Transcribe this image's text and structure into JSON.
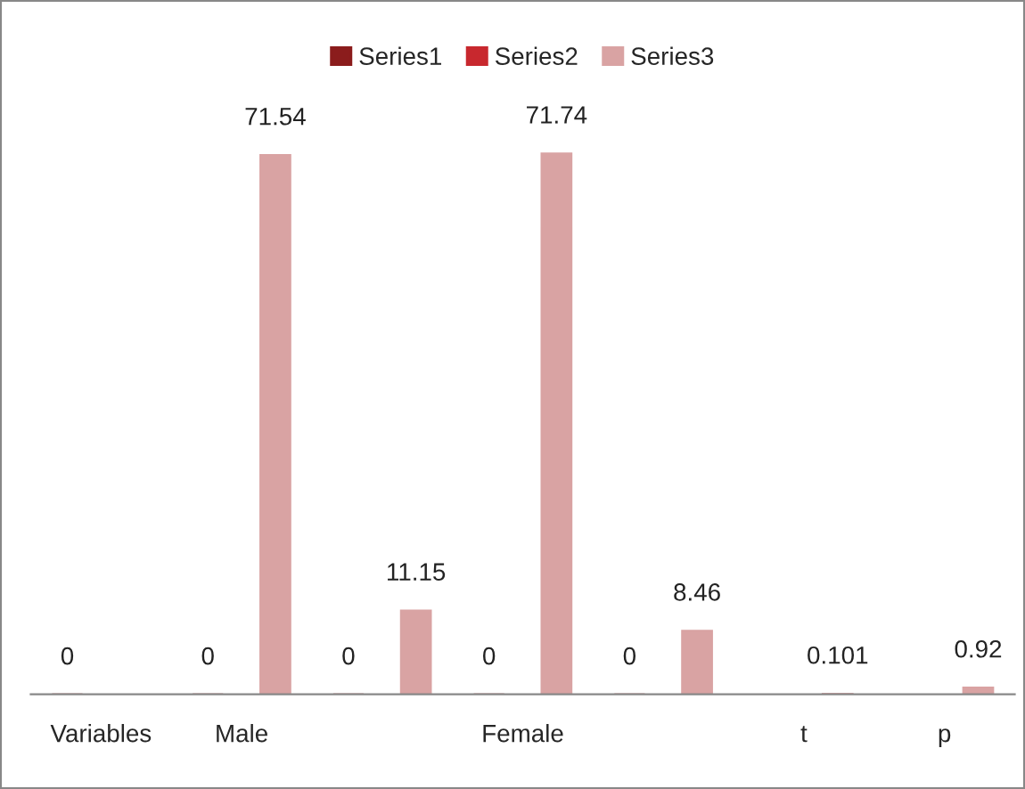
{
  "chart_data": {
    "type": "bar",
    "categories": [
      "Variables",
      "Male",
      null,
      "Female",
      null,
      "t",
      "p"
    ],
    "series": [
      {
        "name": "Series1",
        "color": "#8b1c1c",
        "values": [
          0,
          0,
          0,
          0,
          0,
          null,
          null
        ]
      },
      {
        "name": "Series2",
        "color": "#c8282e",
        "values": [
          null,
          null,
          null,
          null,
          null,
          null,
          null
        ]
      },
      {
        "name": "Series3",
        "color": "#d9a3a3",
        "values": [
          null,
          71.54,
          11.15,
          71.74,
          8.46,
          0.101,
          0.92
        ]
      }
    ],
    "data_labels": true,
    "legend": "top",
    "grid": false
  }
}
